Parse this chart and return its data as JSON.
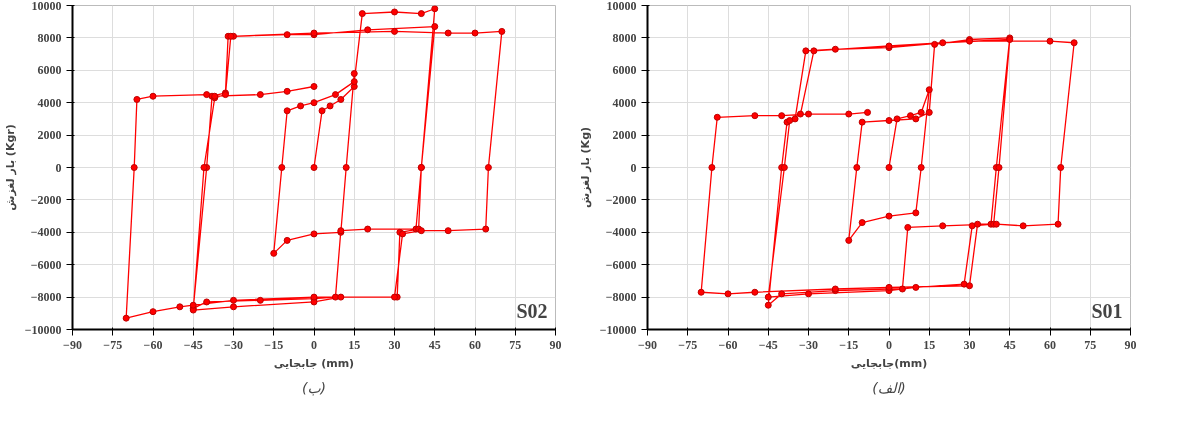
{
  "chart_data": [
    {
      "type": "line",
      "xlabel": "جابجایی (mm)",
      "ylabel": "بار لغزش (Kgr)",
      "annotations": [
        "S02",
        "(ب)"
      ],
      "marker": "circle",
      "line_style": "solid",
      "grid": true,
      "xlim": [
        -90,
        90
      ],
      "xticks": [
        -90,
        -75,
        -60,
        -45,
        -30,
        -15,
        0,
        15,
        30,
        45,
        60,
        75,
        90
      ],
      "ylim": [
        -10000,
        10000
      ],
      "yticks": [
        -10000,
        -8000,
        -6000,
        -4000,
        -2000,
        0,
        2000,
        4000,
        6000,
        8000,
        10000
      ],
      "series": [
        {
          "color": "#ff0000",
          "x": [
            0,
            3,
            6,
            10,
            15,
            15,
            12,
            10,
            0,
            -10,
            -15,
            -12,
            -10,
            -5,
            0,
            8,
            15,
            18,
            30,
            40,
            45,
            40,
            38,
            20,
            10,
            8,
            0,
            -20,
            -40,
            -45,
            -40,
            -38,
            -33,
            -32,
            -30,
            -10,
            0,
            20,
            45,
            40,
            39,
            32,
            31,
            10,
            0,
            -30,
            -45,
            -41,
            -37,
            -33,
            -31,
            0,
            30,
            50,
            60,
            70,
            65,
            64,
            50,
            40,
            33,
            30,
            0,
            -30,
            -45,
            -50,
            -60,
            -70,
            -67,
            -66,
            -60,
            -40,
            -37,
            -20,
            -10,
            0
          ],
          "values": [
            0,
            3500,
            3800,
            4200,
            5000,
            5800,
            0,
            -4000,
            -4100,
            -4500,
            -5300,
            0,
            3500,
            3800,
            4000,
            4500,
            5300,
            9500,
            9600,
            9500,
            9800,
            0,
            -3800,
            -3800,
            -3900,
            -8000,
            -8100,
            -8200,
            -8300,
            -8700,
            0,
            4400,
            4600,
            8100,
            8100,
            8200,
            8200,
            8500,
            8700,
            0,
            -3800,
            -4000,
            -8000,
            -8000,
            -8300,
            -8600,
            -8800,
            0,
            4300,
            4500,
            8100,
            8300,
            8400,
            8300,
            8300,
            8400,
            0,
            -3800,
            -3900,
            -3900,
            -4100,
            -8000,
            -8000,
            -8200,
            -8500,
            -8600,
            -8900,
            -9300,
            0,
            4200,
            4400,
            4500,
            4400,
            4500,
            4700,
            5000
          ]
        }
      ]
    },
    {
      "type": "line",
      "xlabel": "جابجایی(mm)",
      "ylabel": "بار لغزش (Kg)",
      "annotations": [
        "S01",
        "(الف)"
      ],
      "marker": "circle",
      "line_style": "solid",
      "grid": true,
      "xlim": [
        -90,
        90
      ],
      "xticks": [
        -90,
        -75,
        -60,
        -45,
        -30,
        -15,
        0,
        15,
        30,
        45,
        60,
        75,
        90
      ],
      "ylim": [
        -10000,
        10000
      ],
      "yticks": [
        -10000,
        -8000,
        -6000,
        -4000,
        -2000,
        0,
        2000,
        4000,
        6000,
        8000,
        10000
      ],
      "series": [
        {
          "color": "#ff0000",
          "x": [
            0,
            3,
            8,
            12,
            15,
            12,
            10,
            0,
            -10,
            -15,
            -12,
            -10,
            0,
            10,
            15,
            17,
            30,
            45,
            40,
            38,
            20,
            7,
            5,
            0,
            -20,
            -40,
            -45,
            -40,
            -38,
            -35,
            -31,
            -20,
            0,
            20,
            45,
            41,
            39,
            31,
            28,
            10,
            0,
            -30,
            -45,
            -39,
            -37,
            -33,
            -28,
            0,
            30,
            60,
            69,
            64,
            63,
            50,
            40,
            33,
            30,
            0,
            -20,
            -50,
            -60,
            -70,
            -66,
            -64,
            -50,
            -40,
            -30,
            -15,
            -8
          ],
          "values": [
            0,
            3000,
            3200,
            3400,
            4800,
            0,
            -2800,
            -3000,
            -3400,
            -4500,
            0,
            2800,
            2900,
            3000,
            3400,
            7600,
            7900,
            8000,
            0,
            -3500,
            -3600,
            -3700,
            -7500,
            -7500,
            -7600,
            -7800,
            -8500,
            0,
            2800,
            3000,
            7200,
            7300,
            7400,
            7700,
            7900,
            0,
            -3500,
            -3600,
            -7200,
            -7400,
            -7600,
            -7800,
            -8000,
            0,
            2900,
            3300,
            7200,
            7500,
            7800,
            7800,
            7700,
            0,
            -3500,
            -3600,
            -3500,
            -3500,
            -7300,
            -7400,
            -7500,
            -7700,
            -7800,
            -7700,
            0,
            3100,
            3200,
            3200,
            3300,
            3300,
            3400
          ]
        }
      ]
    }
  ]
}
